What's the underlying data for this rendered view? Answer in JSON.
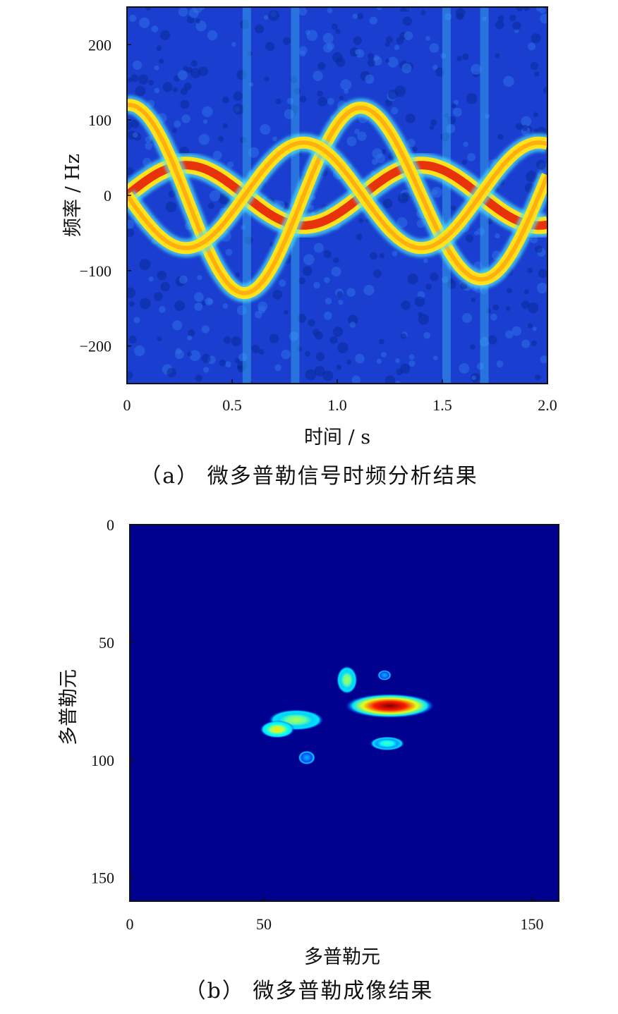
{
  "chart_data": [
    {
      "type": "heatmap",
      "title": "",
      "caption": "（a） 微多普勒信号时频分析结果",
      "xlabel": "时间 / s",
      "ylabel": "频率 / Hz",
      "xlim": [
        0,
        2.0
      ],
      "ylim": [
        -250,
        250
      ],
      "x_ticks": [
        0,
        0.5,
        1.0,
        1.5,
        2.0
      ],
      "x_tick_labels": [
        "0",
        "0.5",
        "1.0",
        "1.5",
        "2.0"
      ],
      "y_ticks": [
        200,
        100,
        0,
        -100,
        -200
      ],
      "y_tick_labels": [
        "200",
        "100",
        "0",
        "−100",
        "−200"
      ],
      "colormap": "jet",
      "background_color": "#1a3fd0",
      "curves": [
        {
          "name": "",
          "amplitude": [
            40,
            40
          ],
          "phase": 0.0
        },
        {
          "name": "",
          "amplitude": [
            110,
            130
          ],
          "phase": 1.57
        },
        {
          "name": "",
          "amplitude": [
            70,
            70
          ],
          "phase": 3.14
        }
      ],
      "curve_period_s": 1.12,
      "vertical_stripes_x": [
        0.57,
        0.8,
        1.52,
        1.7
      ]
    },
    {
      "type": "heatmap",
      "title": "",
      "caption": "（b） 微多普勒成像结果",
      "xlabel": "多普勒元",
      "ylabel": "多普勒元",
      "xlim": [
        0,
        160
      ],
      "ylim": [
        0,
        160
      ],
      "y_inverted": true,
      "x_ticks": [
        0,
        50,
        150
      ],
      "x_tick_labels": [
        "0",
        "50",
        "150"
      ],
      "y_ticks": [
        0,
        50,
        100,
        150
      ],
      "y_tick_labels": [
        "0",
        "50",
        "100",
        "150"
      ],
      "colormap": "jet",
      "background_color": "#00008f",
      "blobs": [
        {
          "x": 81,
          "y": 66,
          "rx": 3,
          "ry": 4,
          "value": 0.55
        },
        {
          "x": 97,
          "y": 77,
          "rx": 13,
          "ry": 3.5,
          "value": 1.0
        },
        {
          "x": 95,
          "y": 64,
          "rx": 2,
          "ry": 1.5,
          "value": 0.3
        },
        {
          "x": 62,
          "y": 83,
          "rx": 8,
          "ry": 3,
          "value": 0.55
        },
        {
          "x": 55,
          "y": 87,
          "rx": 5,
          "ry": 2.5,
          "value": 0.65
        },
        {
          "x": 96,
          "y": 93,
          "rx": 5,
          "ry": 2,
          "value": 0.45
        },
        {
          "x": 66,
          "y": 99,
          "rx": 2.5,
          "ry": 2,
          "value": 0.3
        }
      ]
    }
  ]
}
